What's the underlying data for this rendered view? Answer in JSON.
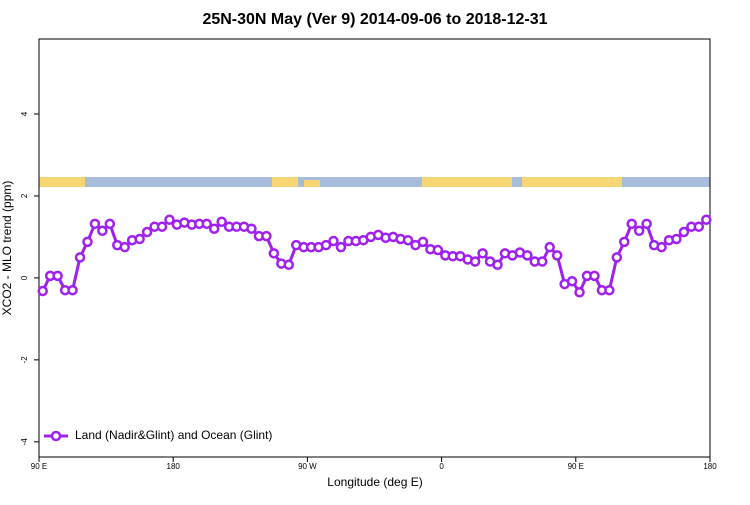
{
  "chart_data": {
    "type": "line",
    "title": "25N-30N May (Ver 9)   2014-09-06 to 2018-12-31",
    "x_label": "Longitude (deg E)",
    "y_label": "XCO2 - MLO trend (ppm)",
    "x": [
      92.5,
      97.5,
      102.5,
      107.5,
      112.5,
      117.5,
      122.5,
      127.5,
      132.5,
      137.5,
      142.5,
      147.5,
      152.5,
      157.5,
      162.5,
      167.5,
      172.5,
      177.5,
      182.5,
      187.5,
      192.5,
      197.5,
      202.5,
      207.5,
      212.5,
      217.5,
      222.5,
      227.5,
      232.5,
      237.5,
      242.5,
      247.5,
      252.5,
      257.5,
      262.5,
      267.5,
      272.5,
      277.5,
      282.5,
      287.5,
      292.5,
      297.5,
      302.5,
      307.5,
      312.5,
      317.5,
      322.5,
      327.5,
      332.5,
      337.5,
      342.5,
      347.5,
      352.5,
      357.5,
      362.5,
      367.5,
      372.5,
      377.5,
      382.5,
      387.5,
      392.5,
      397.5,
      402.5,
      407.5,
      412.5,
      417.5,
      422.5,
      427.5,
      432.5,
      437.5,
      442.5,
      447.5,
      452.5,
      457.5,
      462.5,
      467.5,
      472.5,
      477.5,
      482.5,
      487.5,
      492.5,
      497.5,
      502.5,
      507.5,
      512.5,
      517.5,
      522.5,
      527.5,
      532.5,
      537.5
    ],
    "series": [
      {
        "name": "Land (Nadir&Glint) and Ocean (Glint)",
        "color": "#a020f0",
        "values": [
          -0.32,
          0.05,
          0.05,
          -0.3,
          -0.3,
          0.5,
          0.88,
          1.32,
          1.15,
          1.32,
          0.8,
          0.75,
          0.92,
          0.95,
          1.12,
          1.25,
          1.25,
          1.42,
          1.3,
          1.35,
          1.3,
          1.32,
          1.32,
          1.2,
          1.37,
          1.25,
          1.25,
          1.25,
          1.2,
          1.02,
          1.02,
          0.6,
          0.35,
          0.32,
          0.8,
          0.75,
          0.75,
          0.75,
          0.8,
          0.9,
          0.75,
          0.9,
          0.9,
          0.92,
          1.0,
          1.05,
          0.98,
          1.0,
          0.95,
          0.92,
          0.8,
          0.88,
          0.7,
          0.68,
          0.55,
          0.53,
          0.53,
          0.45,
          0.4,
          0.6,
          0.4,
          0.32,
          0.6,
          0.55,
          0.62,
          0.55,
          0.4,
          0.4,
          0.75,
          0.55,
          -0.15,
          -0.08,
          -0.35,
          0.05,
          0.05,
          -0.3,
          -0.3,
          0.5,
          0.88,
          1.32,
          1.15,
          1.32,
          0.8,
          0.75,
          0.92,
          0.95,
          1.12,
          1.25,
          1.25,
          1.42
        ]
      }
    ],
    "xlim": [
      90,
      540
    ],
    "xticks": [
      {
        "value": 90,
        "label": "90 E"
      },
      {
        "value": 180,
        "label": "180"
      },
      {
        "value": 270,
        "label": "90 W"
      },
      {
        "value": 360,
        "label": "0"
      },
      {
        "value": 450,
        "label": "90 E"
      },
      {
        "value": 540,
        "label": "180"
      }
    ],
    "ylim": [
      -4.37,
      5.83
    ],
    "yticks": [
      -4,
      -2,
      0,
      2,
      4
    ],
    "legend": "bottomleft"
  }
}
